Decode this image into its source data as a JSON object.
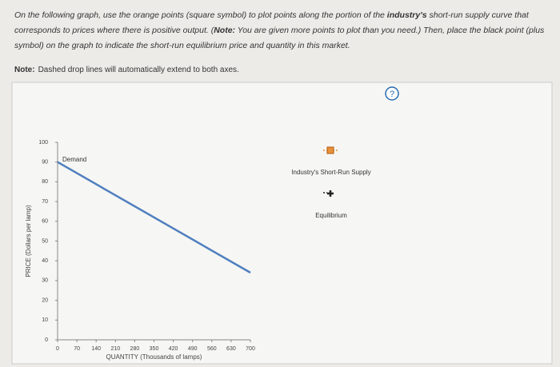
{
  "instructions": [
    {
      "text": "On the following graph, use the orange points (square symbol) to plot points along the portion of the ",
      "bold": false
    },
    {
      "text": "industry's",
      "bold": true
    },
    {
      "text": " short-run supply curve that corresponds to prices where there is positive output. (",
      "bold": false
    },
    {
      "text": "Note:",
      "bold": true
    },
    {
      "text": " You are given more points to plot than you need.) Then, place the black point (plus symbol) on the graph to indicate the short-run equilibrium price and quantity in this market.",
      "bold": false
    }
  ],
  "note": {
    "label": "Note:",
    "text": "Dashed drop lines will automatically extend to both axes."
  },
  "help": "?",
  "chart_data": {
    "type": "line",
    "xlabel": "QUANTITY (Thousands of lamps)",
    "ylabel": "PRICE (Dollars per lamp)",
    "series": [
      {
        "name": "Demand",
        "color": "#4f7fbf",
        "x": [
          0,
          700
        ],
        "values": [
          90,
          34
        ]
      }
    ],
    "xlim": [
      0,
      700
    ],
    "xticks": [
      0,
      70,
      140,
      210,
      280,
      350,
      420,
      490,
      560,
      630,
      700
    ],
    "ylim": [
      0,
      100
    ],
    "yticks": [
      0,
      10,
      20,
      30,
      40,
      50,
      60,
      70,
      80,
      90,
      100
    ],
    "tools": [
      {
        "name": "Industry's Short-Run Supply",
        "color": "#e8913a",
        "symbol": "square"
      },
      {
        "name": "Equilibrium",
        "color": "#222222",
        "symbol": "plus"
      }
    ]
  }
}
